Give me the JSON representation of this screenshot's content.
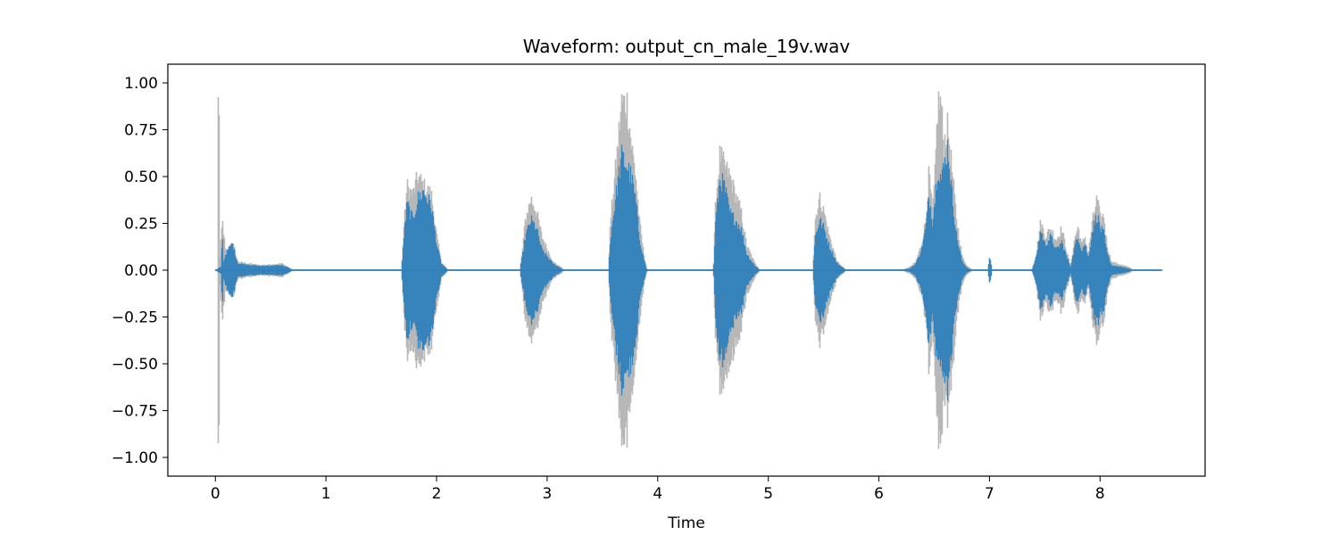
{
  "chart_data": {
    "type": "area",
    "title": "Waveform: output_cn_male_19v.wav",
    "xlabel": "Time",
    "ylabel": "",
    "xlim": [
      -0.43,
      8.95
    ],
    "ylim": [
      -1.1,
      1.1
    ],
    "xticks": [
      0,
      1,
      2,
      3,
      4,
      5,
      6,
      7,
      8
    ],
    "yticks": [
      1.0,
      0.75,
      0.5,
      0.25,
      0.0,
      -0.25,
      -0.5,
      -0.75,
      -1.0
    ],
    "ytick_labels": [
      "1.00",
      "0.75",
      "0.50",
      "0.25",
      "0.00",
      "−0.25",
      "−0.50",
      "−0.75",
      "−1.00"
    ],
    "grid": false,
    "legend": "none",
    "duration": 8.55,
    "series": [
      {
        "color": "#b7b7b7",
        "envelope": [
          [
            0.0,
            0.0
          ],
          [
            0.015,
            0.0
          ],
          [
            0.02,
            1.0
          ],
          [
            0.03,
            1.0
          ],
          [
            0.035,
            0.05
          ],
          [
            0.06,
            0.3
          ],
          [
            0.09,
            0.1
          ],
          [
            0.15,
            0.17
          ],
          [
            0.2,
            0.05
          ],
          [
            0.4,
            0.03
          ],
          [
            0.6,
            0.04
          ],
          [
            0.7,
            0.0
          ],
          [
            1.68,
            0.0
          ],
          [
            1.7,
            0.25
          ],
          [
            1.73,
            0.5
          ],
          [
            1.78,
            0.45
          ],
          [
            1.83,
            0.56
          ],
          [
            1.88,
            0.5
          ],
          [
            1.95,
            0.45
          ],
          [
            2.0,
            0.2
          ],
          [
            2.04,
            0.05
          ],
          [
            2.1,
            0.0
          ],
          [
            2.75,
            0.0
          ],
          [
            2.77,
            0.1
          ],
          [
            2.8,
            0.3
          ],
          [
            2.85,
            0.43
          ],
          [
            2.9,
            0.35
          ],
          [
            2.95,
            0.2
          ],
          [
            3.05,
            0.05
          ],
          [
            3.12,
            0.02
          ],
          [
            3.15,
            0.0
          ],
          [
            3.55,
            0.0
          ],
          [
            3.57,
            0.3
          ],
          [
            3.6,
            0.5
          ],
          [
            3.63,
            0.7
          ],
          [
            3.67,
            1.0
          ],
          [
            3.72,
            1.0
          ],
          [
            3.76,
            0.75
          ],
          [
            3.8,
            0.55
          ],
          [
            3.83,
            0.3
          ],
          [
            3.87,
            0.1
          ],
          [
            3.9,
            0.0
          ],
          [
            4.5,
            0.0
          ],
          [
            4.52,
            0.4
          ],
          [
            4.56,
            0.69
          ],
          [
            4.6,
            0.62
          ],
          [
            4.65,
            0.56
          ],
          [
            4.7,
            0.45
          ],
          [
            4.75,
            0.35
          ],
          [
            4.8,
            0.15
          ],
          [
            4.87,
            0.05
          ],
          [
            4.92,
            0.0
          ],
          [
            5.4,
            0.0
          ],
          [
            5.42,
            0.3
          ],
          [
            5.46,
            0.43
          ],
          [
            5.5,
            0.35
          ],
          [
            5.55,
            0.2
          ],
          [
            5.62,
            0.05
          ],
          [
            5.7,
            0.0
          ],
          [
            6.2,
            0.0
          ],
          [
            6.28,
            0.02
          ],
          [
            6.33,
            0.05
          ],
          [
            6.38,
            0.15
          ],
          [
            6.42,
            0.3
          ],
          [
            6.45,
            0.58
          ],
          [
            6.48,
            0.35
          ],
          [
            6.5,
            0.5
          ],
          [
            6.53,
            1.0
          ],
          [
            6.56,
            1.0
          ],
          [
            6.58,
            0.75
          ],
          [
            6.62,
            0.85
          ],
          [
            6.65,
            0.65
          ],
          [
            6.7,
            0.3
          ],
          [
            6.75,
            0.08
          ],
          [
            6.8,
            0.02
          ],
          [
            6.85,
            0.0
          ],
          [
            6.98,
            0.0
          ],
          [
            7.0,
            0.08
          ],
          [
            7.02,
            0.0
          ],
          [
            7.38,
            0.0
          ],
          [
            7.42,
            0.1
          ],
          [
            7.46,
            0.29
          ],
          [
            7.5,
            0.2
          ],
          [
            7.55,
            0.25
          ],
          [
            7.6,
            0.18
          ],
          [
            7.65,
            0.25
          ],
          [
            7.7,
            0.1
          ],
          [
            7.73,
            0.03
          ],
          [
            7.77,
            0.2
          ],
          [
            7.8,
            0.26
          ],
          [
            7.83,
            0.15
          ],
          [
            7.86,
            0.2
          ],
          [
            7.89,
            0.1
          ],
          [
            7.93,
            0.3
          ],
          [
            7.97,
            0.43
          ],
          [
            8.0,
            0.3
          ],
          [
            8.03,
            0.33
          ],
          [
            8.06,
            0.15
          ],
          [
            8.1,
            0.05
          ],
          [
            8.25,
            0.02
          ],
          [
            8.3,
            0.0
          ],
          [
            8.55,
            0.0
          ]
        ]
      },
      {
        "color": "#2f7fba",
        "envelope": [
          [
            0.0,
            0.0
          ],
          [
            0.02,
            0.01
          ],
          [
            0.05,
            0.02
          ],
          [
            0.06,
            0.26
          ],
          [
            0.07,
            0.05
          ],
          [
            0.09,
            0.1
          ],
          [
            0.15,
            0.16
          ],
          [
            0.2,
            0.04
          ],
          [
            0.4,
            0.025
          ],
          [
            0.6,
            0.03
          ],
          [
            0.7,
            0.0
          ],
          [
            1.68,
            0.0
          ],
          [
            1.7,
            0.2
          ],
          [
            1.73,
            0.4
          ],
          [
            1.78,
            0.3
          ],
          [
            1.83,
            0.43
          ],
          [
            1.88,
            0.47
          ],
          [
            1.95,
            0.38
          ],
          [
            2.0,
            0.15
          ],
          [
            2.04,
            0.04
          ],
          [
            2.1,
            0.0
          ],
          [
            2.75,
            0.0
          ],
          [
            2.77,
            0.08
          ],
          [
            2.8,
            0.2
          ],
          [
            2.85,
            0.3
          ],
          [
            2.9,
            0.25
          ],
          [
            2.95,
            0.12
          ],
          [
            3.05,
            0.04
          ],
          [
            3.12,
            0.01
          ],
          [
            3.15,
            0.0
          ],
          [
            3.55,
            0.0
          ],
          [
            3.57,
            0.2
          ],
          [
            3.6,
            0.35
          ],
          [
            3.63,
            0.5
          ],
          [
            3.67,
            0.68
          ],
          [
            3.72,
            0.62
          ],
          [
            3.76,
            0.55
          ],
          [
            3.8,
            0.4
          ],
          [
            3.83,
            0.2
          ],
          [
            3.87,
            0.07
          ],
          [
            3.9,
            0.0
          ],
          [
            4.5,
            0.0
          ],
          [
            4.52,
            0.3
          ],
          [
            4.56,
            0.55
          ],
          [
            4.6,
            0.5
          ],
          [
            4.65,
            0.34
          ],
          [
            4.7,
            0.3
          ],
          [
            4.75,
            0.25
          ],
          [
            4.8,
            0.1
          ],
          [
            4.87,
            0.03
          ],
          [
            4.92,
            0.0
          ],
          [
            5.4,
            0.0
          ],
          [
            5.42,
            0.2
          ],
          [
            5.46,
            0.3
          ],
          [
            5.5,
            0.25
          ],
          [
            5.55,
            0.14
          ],
          [
            5.62,
            0.04
          ],
          [
            5.7,
            0.0
          ],
          [
            6.2,
            0.0
          ],
          [
            6.28,
            0.01
          ],
          [
            6.33,
            0.04
          ],
          [
            6.38,
            0.12
          ],
          [
            6.42,
            0.25
          ],
          [
            6.45,
            0.45
          ],
          [
            6.48,
            0.3
          ],
          [
            6.5,
            0.4
          ],
          [
            6.53,
            0.62
          ],
          [
            6.56,
            0.55
          ],
          [
            6.58,
            0.6
          ],
          [
            6.62,
            0.75
          ],
          [
            6.65,
            0.5
          ],
          [
            6.7,
            0.2
          ],
          [
            6.75,
            0.05
          ],
          [
            6.8,
            0.01
          ],
          [
            6.85,
            0.0
          ],
          [
            6.98,
            0.0
          ],
          [
            7.0,
            0.09
          ],
          [
            7.02,
            0.0
          ],
          [
            7.38,
            0.0
          ],
          [
            7.42,
            0.08
          ],
          [
            7.46,
            0.24
          ],
          [
            7.5,
            0.15
          ],
          [
            7.55,
            0.2
          ],
          [
            7.6,
            0.12
          ],
          [
            7.65,
            0.17
          ],
          [
            7.7,
            0.07
          ],
          [
            7.73,
            0.02
          ],
          [
            7.77,
            0.15
          ],
          [
            7.8,
            0.2
          ],
          [
            7.83,
            0.12
          ],
          [
            7.86,
            0.16
          ],
          [
            7.89,
            0.07
          ],
          [
            7.93,
            0.25
          ],
          [
            7.97,
            0.33
          ],
          [
            8.0,
            0.25
          ],
          [
            8.03,
            0.22
          ],
          [
            8.06,
            0.1
          ],
          [
            8.1,
            0.03
          ],
          [
            8.25,
            0.01
          ],
          [
            8.3,
            0.0
          ],
          [
            8.55,
            0.0
          ]
        ]
      }
    ]
  }
}
